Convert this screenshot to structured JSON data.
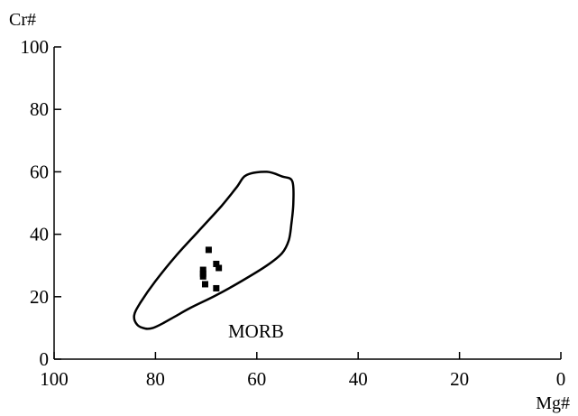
{
  "chart_data": {
    "type": "scatter",
    "title": "",
    "xlabel": "Mg#",
    "ylabel": "Cr#",
    "xlim": [
      100,
      0
    ],
    "ylim": [
      0,
      100
    ],
    "x_reversed": true,
    "x_ticks": [
      100,
      80,
      60,
      40,
      20,
      0
    ],
    "y_ticks": [
      0,
      20,
      40,
      60,
      80,
      100
    ],
    "x_tick_labels": [
      "100",
      "80",
      "60",
      "40",
      "20",
      "0"
    ],
    "y_tick_labels": [
      "0",
      "20",
      "40",
      "60",
      "80",
      "100"
    ],
    "grid": false,
    "marker": "square",
    "series": [
      {
        "points": [
          {
            "x": 69.5,
            "y": 35.0
          },
          {
            "x": 68.0,
            "y": 30.5
          },
          {
            "x": 67.5,
            "y": 29.2
          },
          {
            "x": 70.6,
            "y": 28.6
          },
          {
            "x": 70.6,
            "y": 27.4
          },
          {
            "x": 70.6,
            "y": 26.5
          },
          {
            "x": 70.2,
            "y": 24.0
          },
          {
            "x": 68.0,
            "y": 22.7
          }
        ]
      }
    ],
    "field": {
      "label": "MORB",
      "outline": [
        [
          84.2,
          14.0
        ],
        [
          83.0,
          18.0
        ],
        [
          80.0,
          25.0
        ],
        [
          76.0,
          33.0
        ],
        [
          71.5,
          41.0
        ],
        [
          67.0,
          49.0
        ],
        [
          64.0,
          55.0
        ],
        [
          62.0,
          59.0
        ],
        [
          58.0,
          60.0
        ],
        [
          55.0,
          58.5
        ],
        [
          53.0,
          57.0
        ],
        [
          52.8,
          50.0
        ],
        [
          53.2,
          43.0
        ],
        [
          53.7,
          38.0
        ],
        [
          55.0,
          34.0
        ],
        [
          58.0,
          30.0
        ],
        [
          63.0,
          25.0
        ],
        [
          68.0,
          20.5
        ],
        [
          73.0,
          16.5
        ],
        [
          76.0,
          13.8
        ],
        [
          78.5,
          11.5
        ],
        [
          80.5,
          10.0
        ],
        [
          82.0,
          9.8
        ],
        [
          83.6,
          11.0
        ]
      ]
    }
  }
}
